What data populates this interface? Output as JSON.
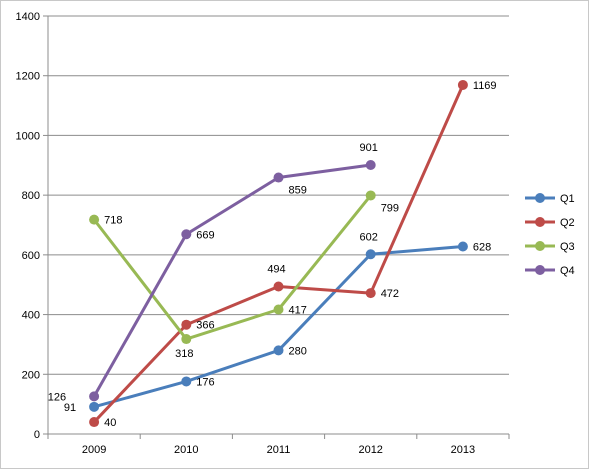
{
  "chart_data": {
    "type": "line",
    "categories": [
      "2009",
      "2010",
      "2011",
      "2012",
      "2013"
    ],
    "ylim": [
      0,
      1400
    ],
    "yticks": [
      0,
      200,
      400,
      600,
      800,
      1000,
      1200,
      1400
    ],
    "grid": "horizontal",
    "legend": "right",
    "series": [
      {
        "name": "Q1",
        "color": "#4a7ebb",
        "values": [
          91,
          176,
          280,
          602,
          628
        ]
      },
      {
        "name": "Q2",
        "color": "#be4b48",
        "values": [
          40,
          366,
          494,
          472,
          1169
        ]
      },
      {
        "name": "Q3",
        "color": "#98b954",
        "values": [
          718,
          318,
          417,
          799,
          null
        ]
      },
      {
        "name": "Q4",
        "color": "#7d5fa0",
        "values": [
          126,
          669,
          859,
          901,
          null
        ]
      }
    ]
  }
}
